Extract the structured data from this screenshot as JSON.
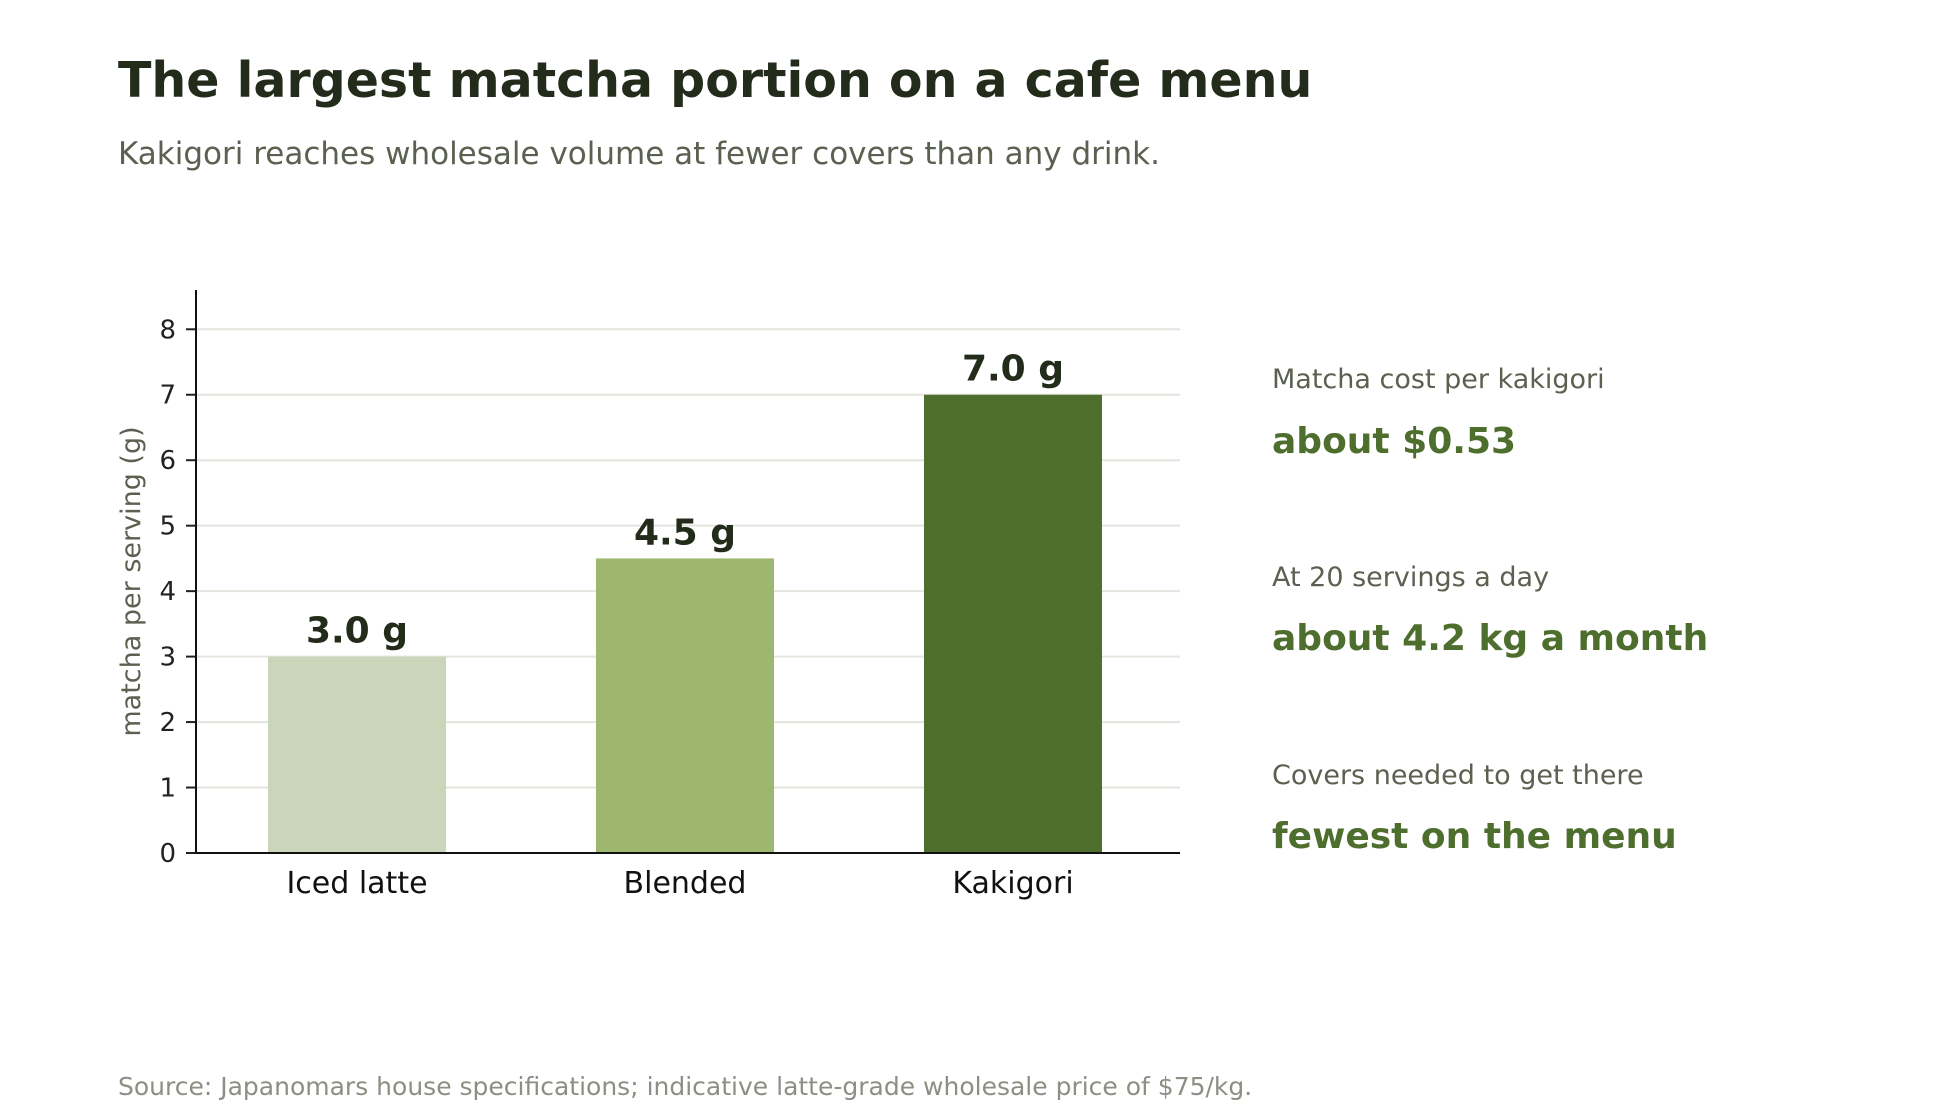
{
  "header": {
    "title": "The largest matcha portion on a cafe menu",
    "subtitle": "Kakigori reaches wholesale volume at fewer covers than any drink."
  },
  "chart_data": {
    "type": "bar",
    "categories": [
      "Iced latte",
      "Blended",
      "Kakigori"
    ],
    "values": [
      3.0,
      4.5,
      7.0
    ],
    "data_labels": [
      "3.0 g",
      "4.5 g",
      "7.0 g"
    ],
    "colors": [
      "#cbd5b9",
      "#9db76f",
      "#4e6e2e"
    ],
    "title": "",
    "xlabel": "",
    "ylabel": "matcha per serving (g)",
    "ylim": [
      0,
      8.6
    ],
    "yticks": [
      0,
      1,
      2,
      3,
      4,
      5,
      6,
      7,
      8
    ],
    "grid": true
  },
  "sidebar": {
    "stats": [
      {
        "label": "Matcha cost per kakigori",
        "value": "about $0.53"
      },
      {
        "label": "At 20 servings a day",
        "value": "about 4.2 kg a month"
      },
      {
        "label": "Covers needed to get there",
        "value": "fewest on the menu"
      }
    ]
  },
  "footer": {
    "source": "Source: Japanomars house specifications; indicative latte-grade wholesale price of $75/kg."
  }
}
